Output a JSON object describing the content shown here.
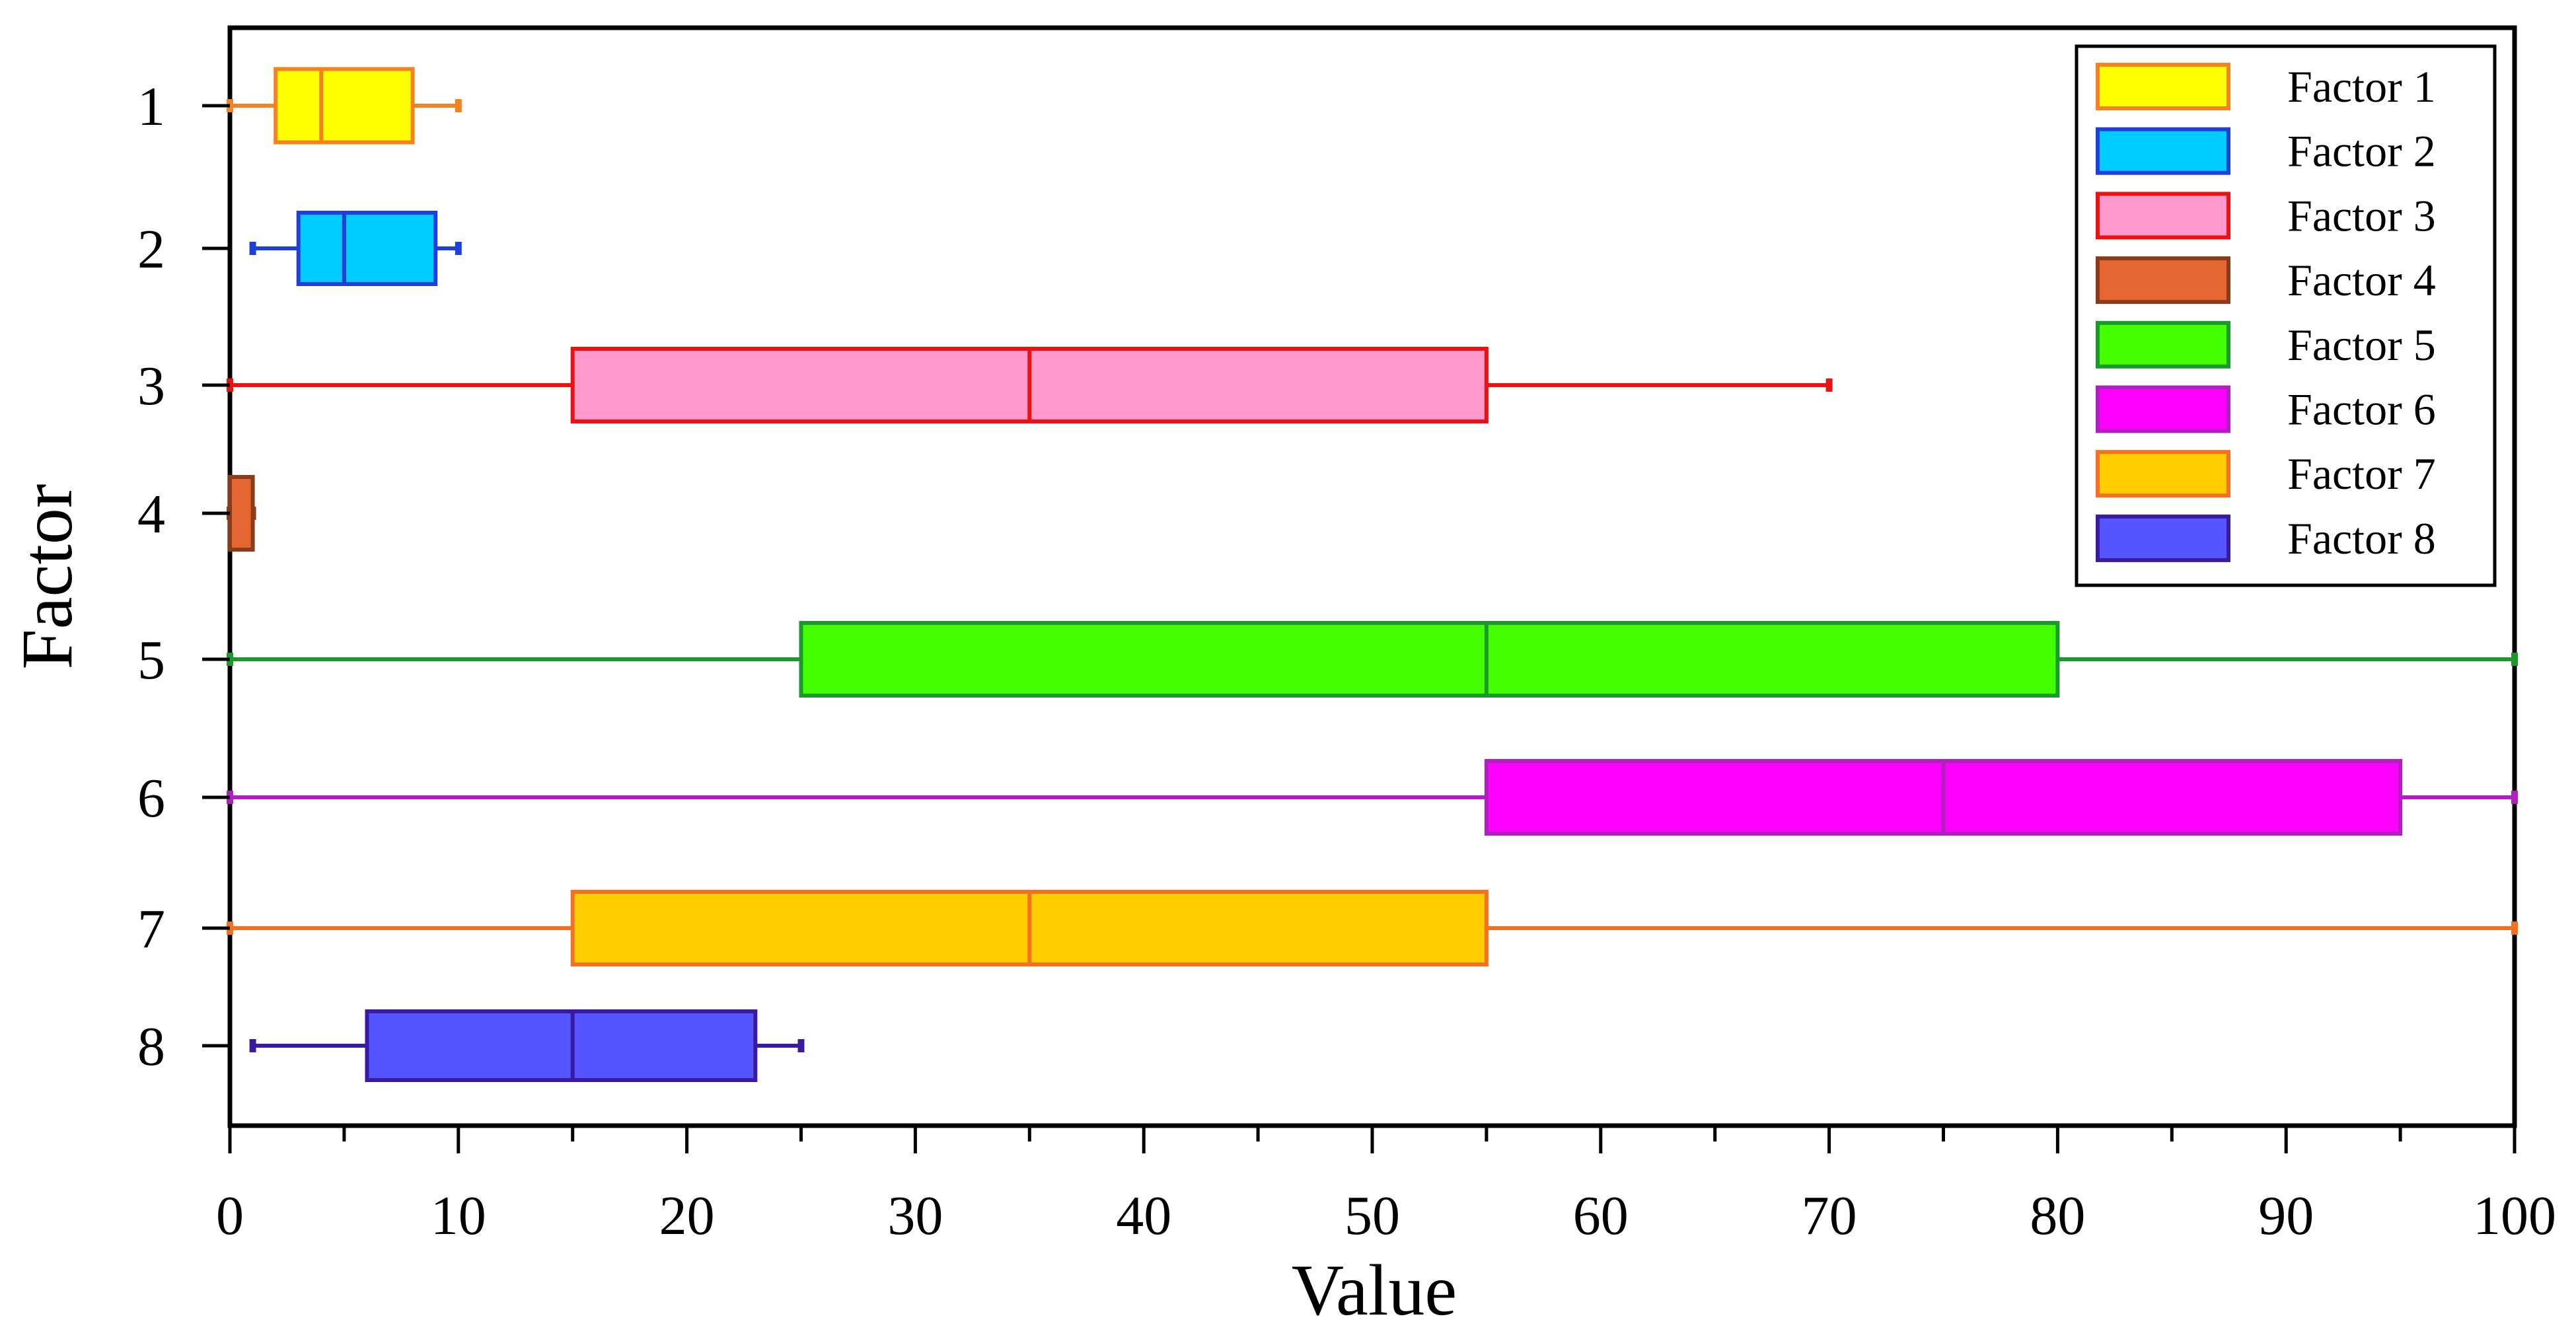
{
  "chart_data": {
    "type": "boxplot",
    "orientation": "horizontal",
    "title": "",
    "xlabel": "Value",
    "ylabel": "Factor",
    "xlim": [
      0,
      100
    ],
    "xticks": [
      0,
      10,
      20,
      30,
      40,
      50,
      60,
      70,
      80,
      90,
      100
    ],
    "xtick_labels": [
      "0",
      "10",
      "20",
      "30",
      "40",
      "50",
      "60",
      "70",
      "80",
      "90",
      "100"
    ],
    "categories": [
      "1",
      "2",
      "3",
      "4",
      "5",
      "6",
      "7",
      "8"
    ],
    "legend_position": "top-right",
    "grid": false,
    "series": [
      {
        "name": "Factor 1",
        "category": "1",
        "min": 0,
        "q1": 2,
        "median": 4,
        "q3": 8,
        "max": 10,
        "fill": "#ffff00",
        "stroke": "#f58220"
      },
      {
        "name": "Factor 2",
        "category": "2",
        "min": 1,
        "q1": 3,
        "median": 5,
        "q3": 9,
        "max": 10,
        "fill": "#00ccff",
        "stroke": "#1f3fdd"
      },
      {
        "name": "Factor 3",
        "category": "3",
        "min": 0,
        "q1": 15,
        "median": 35,
        "q3": 55,
        "max": 70,
        "fill": "#ff99cc",
        "stroke": "#ee1111"
      },
      {
        "name": "Factor 4",
        "category": "4",
        "min": 0,
        "q1": 0,
        "median": 0,
        "q3": 1,
        "max": 1,
        "fill": "#e46630",
        "stroke": "#8b3a1a"
      },
      {
        "name": "Factor 5",
        "category": "5",
        "min": 0,
        "q1": 25,
        "median": 55,
        "q3": 80,
        "max": 100,
        "fill": "#44ff00",
        "stroke": "#1a9a2a"
      },
      {
        "name": "Factor 6",
        "category": "6",
        "min": 0,
        "q1": 55,
        "median": 75,
        "q3": 95,
        "max": 100,
        "fill": "#ff00ff",
        "stroke": "#b020c0"
      },
      {
        "name": "Factor 7",
        "category": "7",
        "min": 0,
        "q1": 15,
        "median": 35,
        "q3": 55,
        "max": 100,
        "fill": "#ffcc00",
        "stroke": "#f57020"
      },
      {
        "name": "Factor 8",
        "category": "8",
        "min": 1,
        "q1": 6,
        "median": 15,
        "q3": 23,
        "max": 25,
        "fill": "#5555ff",
        "stroke": "#3a1aa0"
      }
    ]
  }
}
